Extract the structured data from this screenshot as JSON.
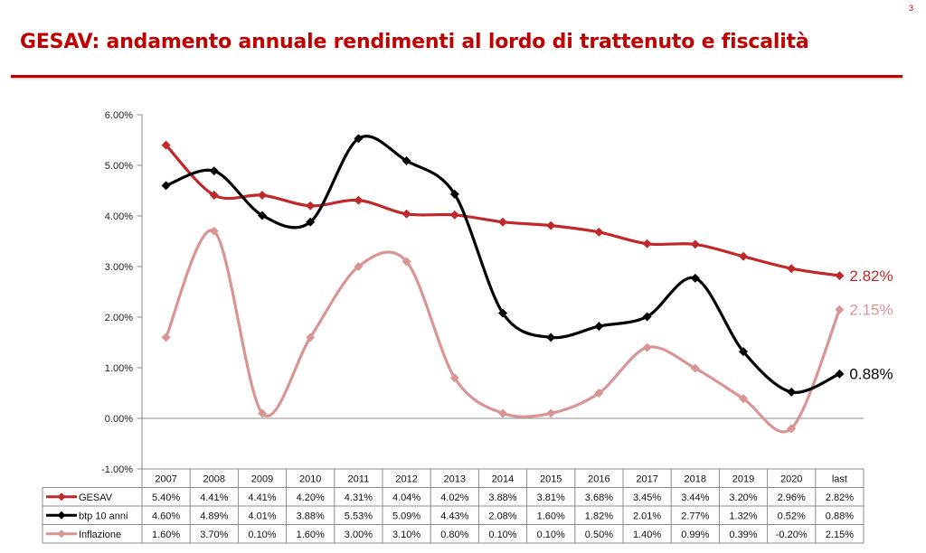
{
  "page_number": "3",
  "title": "GESAV: andamento annuale rendimenti al lordo di trattenuto e fiscalità",
  "chart_data": {
    "type": "line",
    "title": "",
    "xlabel": "",
    "ylabel": "",
    "ylim": [
      -0.01,
      0.06
    ],
    "y_ticks": [
      "6.00%",
      "5.00%",
      "4.00%",
      "3.00%",
      "2.00%",
      "1.00%",
      "0.00%",
      "-1.00%"
    ],
    "categories": [
      "2007",
      "2008",
      "2009",
      "2010",
      "2011",
      "2012",
      "2013",
      "2014",
      "2015",
      "2016",
      "2017",
      "2018",
      "2019",
      "2020",
      "last"
    ],
    "legend_placement": "data-table-left",
    "series": [
      {
        "name": "GESAV",
        "color": "#c0282a",
        "values": [
          0.054,
          0.0441,
          0.0441,
          0.042,
          0.0431,
          0.0404,
          0.0402,
          0.0388,
          0.0381,
          0.0368,
          0.0345,
          0.0344,
          0.032,
          0.0296,
          0.0282
        ],
        "labels": [
          "5.40%",
          "4.41%",
          "4.41%",
          "4.20%",
          "4.31%",
          "4.04%",
          "4.02%",
          "3.88%",
          "3.81%",
          "3.68%",
          "3.45%",
          "3.44%",
          "3.20%",
          "2.96%",
          "2.82%"
        ],
        "end_label": "2.82%"
      },
      {
        "name": "btp 10 anni",
        "color": "#000000",
        "values": [
          0.046,
          0.0489,
          0.0401,
          0.0388,
          0.0553,
          0.0509,
          0.0443,
          0.0208,
          0.016,
          0.0182,
          0.0201,
          0.0277,
          0.0132,
          0.0052,
          0.0088
        ],
        "labels": [
          "4.60%",
          "4.89%",
          "4.01%",
          "3.88%",
          "5.53%",
          "5.09%",
          "4.43%",
          "2.08%",
          "1.60%",
          "1.82%",
          "2.01%",
          "2.77%",
          "1.32%",
          "0.52%",
          "0.88%"
        ],
        "end_label": "0.88%"
      },
      {
        "name": "Inflazione",
        "color": "#d99594",
        "values": [
          0.016,
          0.037,
          0.001,
          0.016,
          0.03,
          0.031,
          0.008,
          0.001,
          0.001,
          0.005,
          0.014,
          0.0099,
          0.0039,
          -0.002,
          0.0215
        ],
        "labels": [
          "1.60%",
          "3.70%",
          "0.10%",
          "1.60%",
          "3.00%",
          "3.10%",
          "0.80%",
          "0.10%",
          "0.10%",
          "0.50%",
          "1.40%",
          "0.99%",
          "0.39%",
          "-0.20%",
          "2.15%"
        ],
        "end_label": "2.15%"
      }
    ]
  }
}
